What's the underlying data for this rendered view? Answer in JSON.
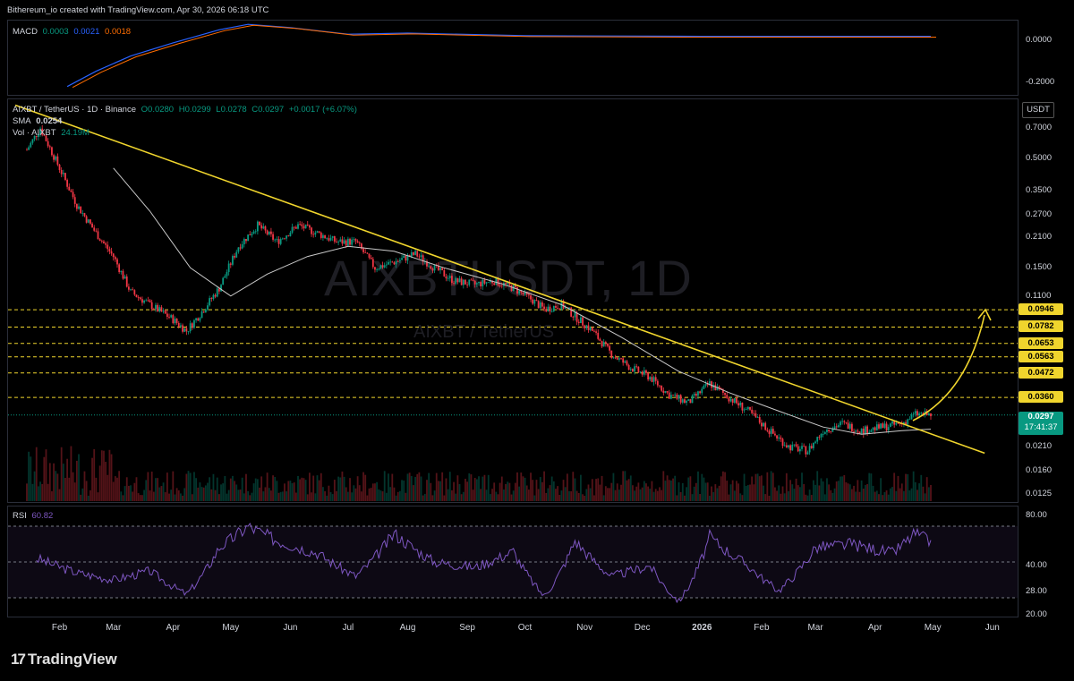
{
  "header": {
    "credit": "Bithereum_io created with TradingView.com, Apr 30, 2026 06:18 UTC"
  },
  "macd": {
    "label": "MACD",
    "v1": "0.0003",
    "v2": "0.0021",
    "v3": "0.0018",
    "ticks": [
      "0.0000",
      "-0.2000"
    ]
  },
  "main": {
    "symbol_line": "AIXBT / TetherUS · 1D · Binance",
    "o": "O0.0280",
    "h": "H0.0299",
    "l": "L0.0278",
    "c": "C0.0297",
    "chg": "+0.0017 (+6.07%)",
    "sma_label": "SMA",
    "sma_value": "0.0254",
    "vol_label": "Vol · AIXBT",
    "vol_value": "24.19M",
    "currency": "USDT",
    "watermark_big": "AIXBTUSDT, 1D",
    "watermark_small": "AIXBT / TetherUS",
    "last_price": "0.0297",
    "countdown": "17:41:37"
  },
  "rsi": {
    "label": "RSI",
    "value": "60.82",
    "ticks": [
      "80.00",
      "40.00",
      "28.00",
      "20.00"
    ]
  },
  "footer": {
    "brand": "TradingView",
    "brand_mark": "17"
  },
  "colors": {
    "up": "#089981",
    "down": "#f23645",
    "trendline": "#f0d52d",
    "sma": "#c9c9c9",
    "rsi": "#7e57c2",
    "macd_line": "#2962ff",
    "macd_signal": "#ff6d00"
  },
  "chart_data": {
    "type": "line",
    "scale": "log",
    "x_labels": [
      "Feb",
      "Mar",
      "Apr",
      "May",
      "Jun",
      "Jul",
      "Aug",
      "Sep",
      "Oct",
      "Nov",
      "Dec",
      "2026",
      "Feb",
      "Mar",
      "Apr",
      "May",
      "Jun"
    ],
    "y_ticks": [
      0.7,
      0.5,
      0.35,
      0.27,
      0.21,
      0.15,
      0.11,
      0.021,
      0.016,
      0.0125
    ],
    "ylim": [
      0.0115,
      0.95
    ],
    "horizontal_levels": [
      0.0946,
      0.0782,
      0.0653,
      0.0563,
      0.0472,
      0.036
    ],
    "series": [
      {
        "name": "AIXBT / TetherUS",
        "dates": [
          "2025-01-15",
          "2025-01-22",
          "2025-02-01",
          "2025-02-10",
          "2025-02-20",
          "2025-03-01",
          "2025-03-10",
          "2025-03-20",
          "2025-04-01",
          "2025-04-08",
          "2025-04-15",
          "2025-04-25",
          "2025-05-05",
          "2025-05-15",
          "2025-05-25",
          "2025-06-05",
          "2025-06-15",
          "2025-06-25",
          "2025-07-05",
          "2025-07-15",
          "2025-07-25",
          "2025-08-05",
          "2025-08-15",
          "2025-08-25",
          "2025-09-05",
          "2025-09-15",
          "2025-09-25",
          "2025-10-05",
          "2025-10-11",
          "2025-10-20",
          "2025-10-27",
          "2025-11-05",
          "2025-11-15",
          "2025-11-25",
          "2025-12-05",
          "2025-12-15",
          "2025-12-25",
          "2026-01-05",
          "2026-01-15",
          "2026-01-25",
          "2026-02-05",
          "2026-02-15",
          "2026-02-25",
          "2026-03-05",
          "2026-03-15",
          "2026-03-25",
          "2026-04-05",
          "2026-04-15",
          "2026-04-22",
          "2026-04-30"
        ],
        "close": [
          0.55,
          0.7,
          0.45,
          0.3,
          0.22,
          0.17,
          0.115,
          0.1,
          0.085,
          0.075,
          0.09,
          0.12,
          0.19,
          0.24,
          0.2,
          0.24,
          0.22,
          0.2,
          0.2,
          0.15,
          0.16,
          0.175,
          0.15,
          0.13,
          0.125,
          0.13,
          0.12,
          0.105,
          0.095,
          0.1,
          0.088,
          0.075,
          0.058,
          0.05,
          0.045,
          0.037,
          0.034,
          0.042,
          0.036,
          0.031,
          0.025,
          0.021,
          0.02,
          0.025,
          0.027,
          0.025,
          0.026,
          0.027,
          0.03,
          0.0297
        ]
      },
      {
        "name": "SMA",
        "dates": [
          "2025-03-01",
          "2025-03-20",
          "2025-04-10",
          "2025-05-01",
          "2025-05-20",
          "2025-06-10",
          "2025-07-01",
          "2025-07-25",
          "2025-08-20",
          "2025-09-20",
          "2025-10-20",
          "2025-11-20",
          "2025-12-20",
          "2026-01-15",
          "2026-02-10",
          "2026-03-05",
          "2026-03-25",
          "2026-04-15",
          "2026-04-30"
        ],
        "values": [
          0.45,
          0.28,
          0.15,
          0.11,
          0.14,
          0.17,
          0.19,
          0.18,
          0.15,
          0.125,
          0.1,
          0.07,
          0.048,
          0.038,
          0.031,
          0.026,
          0.024,
          0.025,
          0.0254
        ]
      },
      {
        "name": "Trendline",
        "dates": [
          "2025-01-09",
          "2026-05-28"
        ],
        "values": [
          0.9,
          0.0195
        ]
      }
    ],
    "rsi": {
      "ylim": [
        20,
        80
      ],
      "bands": [
        70,
        50,
        30
      ],
      "dates": [
        "2025-01-20",
        "2025-02-10",
        "2025-03-01",
        "2025-03-20",
        "2025-04-08",
        "2025-04-25",
        "2025-05-10",
        "2025-05-25",
        "2025-06-15",
        "2025-07-05",
        "2025-07-25",
        "2025-08-15",
        "2025-09-05",
        "2025-09-25",
        "2025-10-11",
        "2025-10-27",
        "2025-11-15",
        "2025-12-05",
        "2025-12-20",
        "2026-01-05",
        "2026-01-25",
        "2026-02-10",
        "2026-03-01",
        "2026-03-20",
        "2026-04-10",
        "2026-04-22",
        "2026-04-30"
      ],
      "values": [
        52,
        44,
        40,
        45,
        32,
        58,
        70,
        62,
        55,
        42,
        66,
        50,
        47,
        56,
        31,
        62,
        42,
        48,
        28,
        64,
        48,
        34,
        58,
        60,
        55,
        66,
        60.82
      ]
    },
    "macd": {
      "ylim": [
        -0.26,
        0.06
      ],
      "dates": [
        "2025-02-05",
        "2025-02-20",
        "2025-03-10",
        "2025-04-01",
        "2025-04-25",
        "2025-05-10",
        "2025-06-01",
        "2025-07-01",
        "2025-08-01",
        "2025-10-01",
        "2026-01-01",
        "2026-04-30"
      ],
      "values": [
        -0.23,
        -0.16,
        -0.09,
        -0.03,
        0.03,
        0.055,
        0.04,
        0.01,
        0.015,
        0.003,
        0.0,
        0.0003
      ]
    }
  }
}
